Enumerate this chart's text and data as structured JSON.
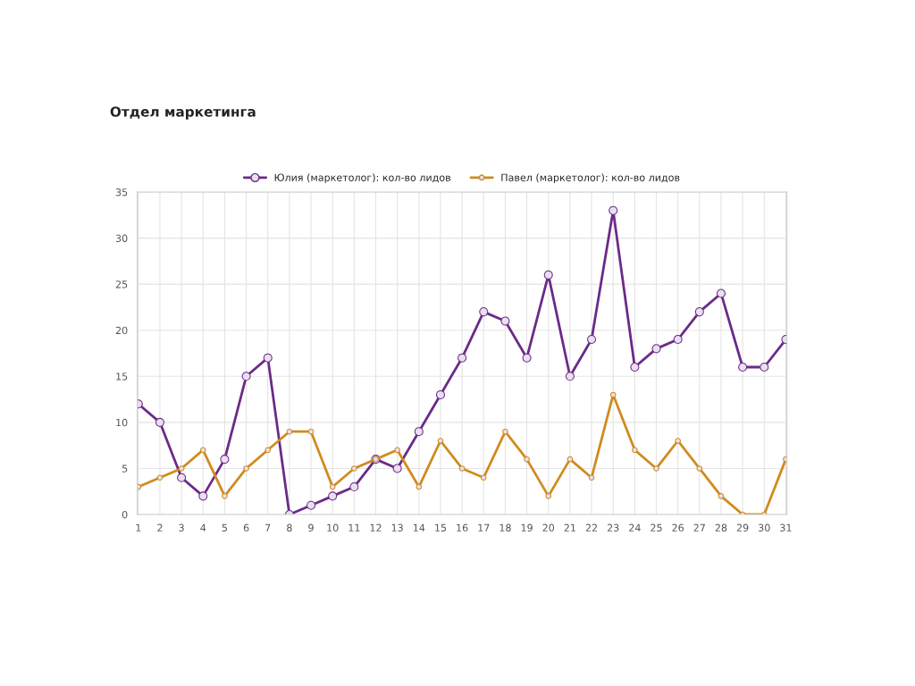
{
  "chart_data": {
    "type": "line",
    "title": "Отдел маркетинга",
    "categories": [
      "1",
      "2",
      "3",
      "4",
      "5",
      "6",
      "7",
      "8",
      "9",
      "10",
      "11",
      "12",
      "13",
      "14",
      "15",
      "16",
      "17",
      "18",
      "19",
      "20",
      "21",
      "22",
      "23",
      "24",
      "25",
      "26",
      "27",
      "28",
      "29",
      "30",
      "31"
    ],
    "series": [
      {
        "name": "Юлия (маркетолог): кол-во лидов",
        "color": "#6b2a88",
        "values": [
          12,
          10,
          4,
          2,
          6,
          15,
          17,
          0,
          1,
          2,
          3,
          6,
          5,
          9,
          13,
          17,
          22,
          21,
          17,
          26,
          15,
          19,
          33,
          16,
          18,
          19,
          22,
          24,
          16,
          16,
          19
        ]
      },
      {
        "name": "Павел (маркетолог): кол-во лидов",
        "color": "#d08b1f",
        "values": [
          3,
          4,
          5,
          7,
          2,
          5,
          7,
          9,
          9,
          3,
          5,
          6,
          7,
          3,
          8,
          5,
          4,
          9,
          6,
          2,
          6,
          4,
          13,
          7,
          5,
          8,
          5,
          2,
          0,
          0,
          6
        ]
      }
    ],
    "ylim": [
      0,
      35
    ],
    "yticks": [
      0,
      5,
      10,
      15,
      20,
      25,
      30,
      35
    ],
    "grid": true,
    "legend": "top",
    "marker": "circle",
    "line_style": "solid"
  }
}
